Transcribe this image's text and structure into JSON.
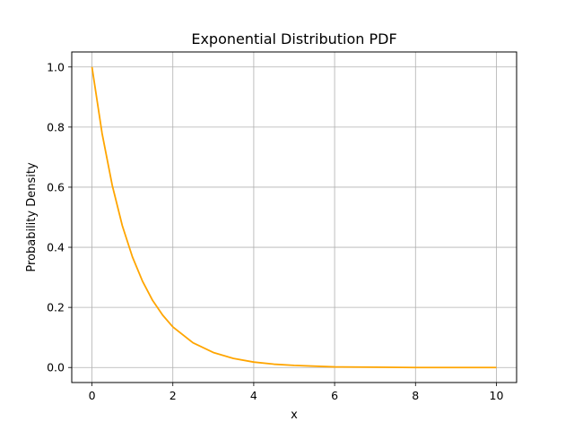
{
  "chart_data": {
    "type": "line",
    "title": "Exponential Distribution PDF",
    "xlabel": "x",
    "ylabel": "Probability Density",
    "xlim": [
      -0.5,
      10.5
    ],
    "ylim": [
      -0.05,
      1.05
    ],
    "xticks": [
      0,
      2,
      4,
      6,
      8,
      10
    ],
    "yticks": [
      0.0,
      0.2,
      0.4,
      0.6,
      0.8,
      1.0
    ],
    "xtick_labels": [
      "0",
      "2",
      "4",
      "6",
      "8",
      "10"
    ],
    "ytick_labels": [
      "0.0",
      "0.2",
      "0.4",
      "0.6",
      "0.8",
      "1.0"
    ],
    "grid": true,
    "series": [
      {
        "color": "#ffa500",
        "x": [
          0,
          0.25,
          0.5,
          0.75,
          1,
          1.25,
          1.5,
          1.75,
          2,
          2.5,
          3,
          3.5,
          4,
          4.5,
          5,
          6,
          7,
          8,
          9,
          10
        ],
        "y": [
          1.0,
          0.779,
          0.607,
          0.472,
          0.368,
          0.287,
          0.223,
          0.174,
          0.135,
          0.082,
          0.05,
          0.03,
          0.018,
          0.011,
          0.007,
          0.002,
          0.001,
          0.0,
          0.0,
          0.0
        ]
      }
    ]
  }
}
